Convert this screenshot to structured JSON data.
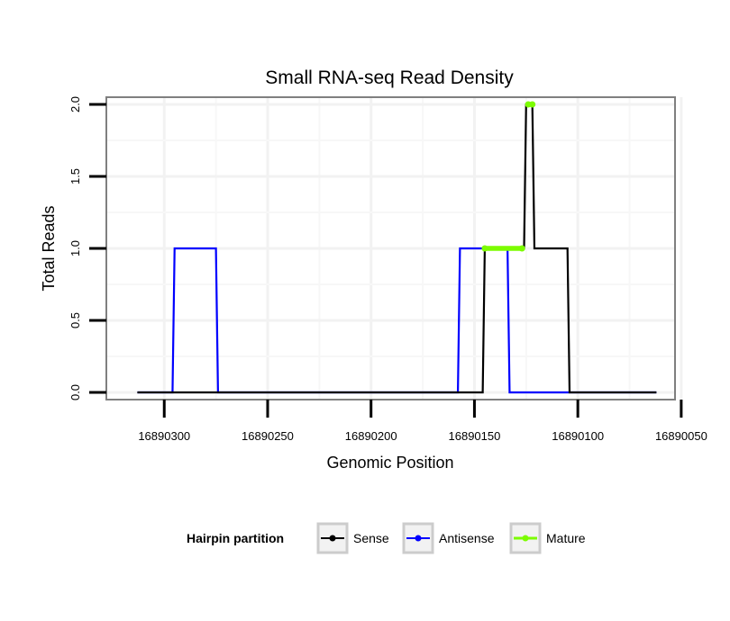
{
  "chart_data": {
    "type": "line",
    "title": "Small RNA-seq Read Density",
    "xlabel": "Genomic Position",
    "ylabel": "Total Reads",
    "x_reversed": true,
    "xlim": [
      16890328,
      16890053
    ],
    "ylim": [
      -0.05,
      2.05
    ],
    "x_ticks": [
      16890300,
      16890250,
      16890200,
      16890150,
      16890100,
      16890050
    ],
    "x_tick_labels": [
      "16890300",
      "16890250",
      "16890200",
      "16890150",
      "16890100",
      "16890050"
    ],
    "y_ticks": [
      0.0,
      0.5,
      1.0,
      1.5,
      2.0
    ],
    "y_tick_labels": [
      "0.0",
      "0.5",
      "1.0",
      "1.5",
      "2.0"
    ],
    "grid": true,
    "legend": {
      "title": "Hairpin partition",
      "position": "bottom",
      "entries": [
        "Sense",
        "Antisense",
        "Mature"
      ]
    },
    "series": [
      {
        "name": "Antisense",
        "color": "#0000ff",
        "x": [
          16890313,
          16890296,
          16890295,
          16890275,
          16890274,
          16890158,
          16890157,
          16890134,
          16890133,
          16890114,
          16890113,
          16890062
        ],
        "y": [
          0,
          0,
          1,
          1,
          0,
          0,
          1,
          1,
          0,
          0,
          0,
          0
        ]
      },
      {
        "name": "Sense",
        "color": "#000000",
        "x": [
          16890313,
          16890146,
          16890145,
          16890128,
          16890127,
          16890126,
          16890125,
          16890122,
          16890121,
          16890105,
          16890104,
          16890062
        ],
        "y": [
          0,
          0,
          1,
          1,
          1,
          1,
          2,
          2,
          1,
          1,
          0,
          0
        ]
      },
      {
        "name": "Mature",
        "color": "#7cfc00",
        "segments": [
          {
            "x": [
              16890145,
              16890127
            ],
            "y": [
              1,
              1
            ]
          },
          {
            "x": [
              16890124,
              16890122
            ],
            "y": [
              2,
              2
            ]
          }
        ]
      }
    ]
  }
}
